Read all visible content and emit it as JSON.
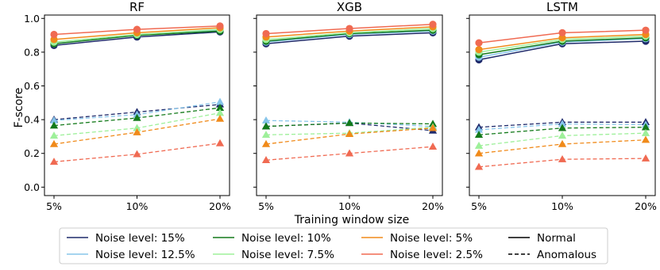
{
  "figure": {
    "xlabel": "Training window size",
    "ylabel": "F-score"
  },
  "legend": {
    "items": [
      {
        "label": "Noise level: 15%",
        "color": "#1f2a6b",
        "style": "solid"
      },
      {
        "label": "Noise level: 12.5%",
        "color": "#87c5ea",
        "style": "solid"
      },
      {
        "label": "Noise level: 10%",
        "color": "#137a1a",
        "style": "solid"
      },
      {
        "label": "Noise level: 7.5%",
        "color": "#9ef09a",
        "style": "solid"
      },
      {
        "label": "Noise level: 5%",
        "color": "#f08a1a",
        "style": "solid"
      },
      {
        "label": "Noise level: 2.5%",
        "color": "#f06a52",
        "style": "solid"
      },
      {
        "label": "Normal",
        "color": "#000000",
        "style": "solid"
      },
      {
        "label": "Anomalous",
        "color": "#000000",
        "style": "dashed"
      }
    ]
  },
  "chart_data": [
    {
      "type": "line",
      "title": "RF",
      "categories": [
        "5%",
        "10%",
        "20%"
      ],
      "ylim": [
        -0.05,
        1.02
      ],
      "yticks": [
        "0.0",
        "0.2",
        "0.4",
        "0.6",
        "0.8",
        "1.0"
      ],
      "grid": false,
      "normal": [
        {
          "name": "Noise level: 15%",
          "color": "#1f2a6b",
          "values": [
            0.84,
            0.89,
            0.92
          ]
        },
        {
          "name": "Noise level: 12.5%",
          "color": "#87c5ea",
          "values": [
            0.85,
            0.9,
            0.93
          ]
        },
        {
          "name": "Noise level: 10%",
          "color": "#137a1a",
          "values": [
            0.85,
            0.9,
            0.925
          ]
        },
        {
          "name": "Noise level: 7.5%",
          "color": "#9ef09a",
          "values": [
            0.86,
            0.905,
            0.935
          ]
        },
        {
          "name": "Noise level: 5%",
          "color": "#f08a1a",
          "values": [
            0.875,
            0.915,
            0.945
          ]
        },
        {
          "name": "Noise level: 2.5%",
          "color": "#f06a52",
          "values": [
            0.905,
            0.935,
            0.955
          ]
        }
      ],
      "anomalous": [
        {
          "name": "Noise level: 15%",
          "color": "#1f2a6b",
          "values": [
            0.4,
            0.445,
            0.49
          ]
        },
        {
          "name": "Noise level: 12.5%",
          "color": "#87c5ea",
          "values": [
            0.395,
            0.43,
            0.505
          ]
        },
        {
          "name": "Noise level: 10%",
          "color": "#137a1a",
          "values": [
            0.365,
            0.41,
            0.47
          ]
        },
        {
          "name": "Noise level: 7.5%",
          "color": "#9ef09a",
          "values": [
            0.305,
            0.35,
            0.44
          ]
        },
        {
          "name": "Noise level: 5%",
          "color": "#f08a1a",
          "values": [
            0.255,
            0.325,
            0.405
          ]
        },
        {
          "name": "Noise level: 2.5%",
          "color": "#f06a52",
          "values": [
            0.15,
            0.195,
            0.26
          ]
        }
      ]
    },
    {
      "type": "line",
      "title": "XGB",
      "categories": [
        "5%",
        "10%",
        "20%"
      ],
      "ylim": [
        -0.05,
        1.02
      ],
      "yticks": [
        "0.0",
        "0.2",
        "0.4",
        "0.6",
        "0.8",
        "1.0"
      ],
      "grid": false,
      "normal": [
        {
          "name": "Noise level: 15%",
          "color": "#1f2a6b",
          "values": [
            0.85,
            0.895,
            0.915
          ]
        },
        {
          "name": "Noise level: 12.5%",
          "color": "#87c5ea",
          "values": [
            0.86,
            0.905,
            0.925
          ]
        },
        {
          "name": "Noise level: 10%",
          "color": "#137a1a",
          "values": [
            0.865,
            0.91,
            0.93
          ]
        },
        {
          "name": "Noise level: 7.5%",
          "color": "#9ef09a",
          "values": [
            0.875,
            0.915,
            0.94
          ]
        },
        {
          "name": "Noise level: 5%",
          "color": "#f08a1a",
          "values": [
            0.89,
            0.925,
            0.95
          ]
        },
        {
          "name": "Noise level: 2.5%",
          "color": "#f06a52",
          "values": [
            0.91,
            0.94,
            0.965
          ]
        }
      ],
      "anomalous": [
        {
          "name": "Noise level: 15%",
          "color": "#1f2a6b",
          "values": [
            0.36,
            0.38,
            0.335
          ]
        },
        {
          "name": "Noise level: 12.5%",
          "color": "#87c5ea",
          "values": [
            0.395,
            0.385,
            0.36
          ]
        },
        {
          "name": "Noise level: 10%",
          "color": "#137a1a",
          "values": [
            0.36,
            0.38,
            0.375
          ]
        },
        {
          "name": "Noise level: 7.5%",
          "color": "#9ef09a",
          "values": [
            0.31,
            0.32,
            0.355
          ]
        },
        {
          "name": "Noise level: 5%",
          "color": "#f08a1a",
          "values": [
            0.255,
            0.315,
            0.35
          ]
        },
        {
          "name": "Noise level: 2.5%",
          "color": "#f06a52",
          "values": [
            0.16,
            0.2,
            0.24
          ]
        }
      ]
    },
    {
      "type": "line",
      "title": "LSTM",
      "categories": [
        "5%",
        "10%",
        "20%"
      ],
      "ylim": [
        -0.05,
        1.02
      ],
      "yticks": [
        "0.0",
        "0.2",
        "0.4",
        "0.6",
        "0.8",
        "1.0"
      ],
      "grid": false,
      "normal": [
        {
          "name": "Noise level: 15%",
          "color": "#1f2a6b",
          "values": [
            0.755,
            0.85,
            0.865
          ]
        },
        {
          "name": "Noise level: 12.5%",
          "color": "#87c5ea",
          "values": [
            0.77,
            0.86,
            0.88
          ]
        },
        {
          "name": "Noise level: 10%",
          "color": "#137a1a",
          "values": [
            0.785,
            0.865,
            0.885
          ]
        },
        {
          "name": "Noise level: 7.5%",
          "color": "#9ef09a",
          "values": [
            0.8,
            0.875,
            0.895
          ]
        },
        {
          "name": "Noise level: 5%",
          "color": "#f08a1a",
          "values": [
            0.815,
            0.885,
            0.905
          ]
        },
        {
          "name": "Noise level: 2.5%",
          "color": "#f06a52",
          "values": [
            0.855,
            0.915,
            0.93
          ]
        }
      ],
      "anomalous": [
        {
          "name": "Noise level: 15%",
          "color": "#1f2a6b",
          "values": [
            0.355,
            0.385,
            0.385
          ]
        },
        {
          "name": "Noise level: 12.5%",
          "color": "#87c5ea",
          "values": [
            0.34,
            0.375,
            0.37
          ]
        },
        {
          "name": "Noise level: 10%",
          "color": "#137a1a",
          "values": [
            0.31,
            0.35,
            0.355
          ]
        },
        {
          "name": "Noise level: 7.5%",
          "color": "#9ef09a",
          "values": [
            0.245,
            0.305,
            0.32
          ]
        },
        {
          "name": "Noise level: 5%",
          "color": "#f08a1a",
          "values": [
            0.2,
            0.255,
            0.28
          ]
        },
        {
          "name": "Noise level: 2.5%",
          "color": "#f06a52",
          "values": [
            0.12,
            0.165,
            0.17
          ]
        }
      ]
    }
  ]
}
